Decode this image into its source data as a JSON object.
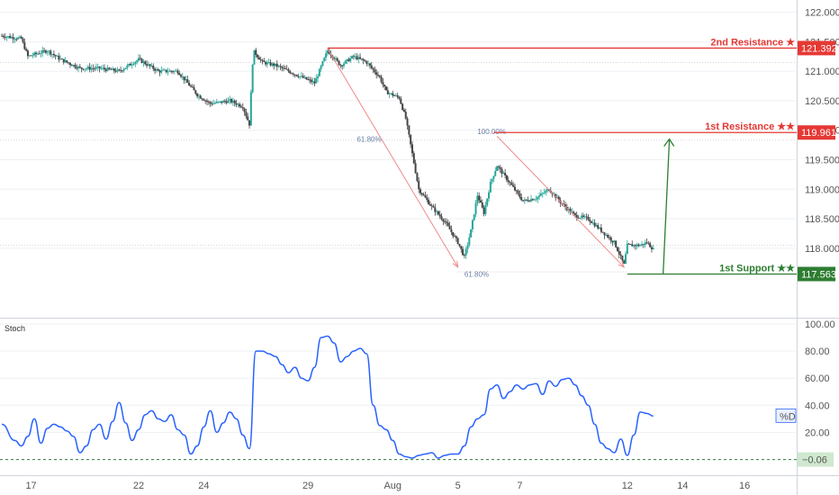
{
  "colors": {
    "up": "#26a69a",
    "down": "#444444",
    "resistance": "#e53935",
    "support": "#2e7d32",
    "stoch_line": "#2962ff",
    "fib_text": "#6b7fa8",
    "fib_arrow": "#ef8a8a",
    "grid": "#eef1f5"
  },
  "chart_data": [
    {
      "type": "candlestick",
      "title": "",
      "ylim": [
        117.25,
        122.1
      ],
      "yticks": [
        "122.000",
        "121.500",
        "121.000",
        "120.500",
        "120.000",
        "119.500",
        "119.000",
        "118.500",
        "118.000"
      ],
      "ytick_values": [
        122.0,
        121.5,
        121.0,
        120.5,
        120.0,
        119.5,
        119.0,
        118.5,
        118.0
      ],
      "xticks": [
        {
          "label": "17",
          "bar": 4.5
        },
        {
          "label": "22",
          "bar": 21
        },
        {
          "label": "24",
          "bar": 31
        },
        {
          "label": "29",
          "bar": 47
        },
        {
          "label": "Aug",
          "bar": 60
        },
        {
          "label": "5",
          "bar": 70
        },
        {
          "label": "7",
          "bar": 79.5
        },
        {
          "label": "12",
          "bar": 96
        },
        {
          "label": "14",
          "bar": 104.5
        },
        {
          "label": "16",
          "bar": 114
        }
      ],
      "bar_count": 122,
      "close_path": [
        [
          0,
          121.6
        ],
        [
          3,
          121.55
        ],
        [
          4,
          121.25
        ],
        [
          7,
          121.35
        ],
        [
          9,
          121.2
        ],
        [
          12,
          121.05
        ],
        [
          15,
          121.05
        ],
        [
          18,
          121.0
        ],
        [
          21,
          121.2
        ],
        [
          24,
          121.0
        ],
        [
          27,
          121.0
        ],
        [
          30,
          120.6
        ],
        [
          32,
          120.45
        ],
        [
          35,
          120.5
        ],
        [
          37,
          120.4
        ],
        [
          38,
          120.1
        ],
        [
          38.6,
          121.35
        ],
        [
          40,
          121.15
        ],
        [
          42,
          121.1
        ],
        [
          44,
          121.0
        ],
        [
          46,
          120.9
        ],
        [
          48,
          120.8
        ],
        [
          50,
          121.35
        ],
        [
          52,
          121.1
        ],
        [
          54,
          121.25
        ],
        [
          56,
          121.15
        ],
        [
          58,
          120.9
        ],
        [
          59,
          120.65
        ],
        [
          61,
          120.55
        ],
        [
          62,
          120.2
        ],
        [
          63,
          119.6
        ],
        [
          64,
          119.0
        ],
        [
          66,
          118.7
        ],
        [
          68,
          118.45
        ],
        [
          70,
          118.1
        ],
        [
          71,
          117.85
        ],
        [
          72,
          118.3
        ],
        [
          73,
          118.9
        ],
        [
          74,
          118.6
        ],
        [
          75,
          119.1
        ],
        [
          76,
          119.4
        ],
        [
          78,
          119.1
        ],
        [
          80,
          118.8
        ],
        [
          82,
          118.85
        ],
        [
          84,
          119.0
        ],
        [
          86,
          118.75
        ],
        [
          88,
          118.55
        ],
        [
          90,
          118.5
        ],
        [
          92,
          118.3
        ],
        [
          94,
          118.1
        ],
        [
          95.5,
          117.72
        ],
        [
          96,
          118.05
        ],
        [
          98,
          118.05
        ],
        [
          99,
          118.1
        ],
        [
          100,
          117.98
        ]
      ],
      "levels": [
        {
          "name": "2nd Resistance",
          "label": "2nd Resistance ★",
          "price": 121.392,
          "price_label": "121.392",
          "from_bar": 50,
          "role": "resistance"
        },
        {
          "name": "1st Resistance",
          "label": "1st Resistance ★★",
          "price": 119.961,
          "price_label": "119.961",
          "from_bar": 75.5,
          "role": "resistance"
        },
        {
          "name": "1st Support",
          "label": "1st Support ★★",
          "price": 117.563,
          "price_label": "117.563",
          "from_bar": 96,
          "role": "support"
        }
      ],
      "fib_labels": [
        {
          "text": "61.80%",
          "bar": 54.5,
          "price": 119.85
        },
        {
          "text": "100.00%",
          "bar": 73,
          "price": 119.98
        },
        {
          "text": "61.80%",
          "bar": 71,
          "price": 117.56
        }
      ],
      "fib_arrows": [
        {
          "from": [
            50,
            121.38
          ],
          "to": [
            70,
            117.68
          ]
        },
        {
          "from": [
            76,
            119.9
          ],
          "to": [
            95.5,
            117.68
          ]
        }
      ],
      "target_arrow": {
        "bar": 101.5,
        "from": 117.563,
        "to": 119.85
      }
    },
    {
      "type": "line",
      "title": "Stoch",
      "series": [
        {
          "name": "%D",
          "values_path": [
            [
              0,
              26
            ],
            [
              2,
              14
            ],
            [
              3,
              10
            ],
            [
              4,
              17
            ],
            [
              5,
              30
            ],
            [
              6,
              12
            ],
            [
              7,
              23
            ],
            [
              8,
              26
            ],
            [
              9,
              24
            ],
            [
              10,
              21
            ],
            [
              11,
              17
            ],
            [
              12,
              5
            ],
            [
              13,
              10
            ],
            [
              14,
              22
            ],
            [
              15,
              26
            ],
            [
              16,
              15
            ],
            [
              17,
              28
            ],
            [
              18,
              42
            ],
            [
              19,
              27
            ],
            [
              20,
              14
            ],
            [
              21,
              22
            ],
            [
              22,
              33
            ],
            [
              23,
              36
            ],
            [
              24,
              30
            ],
            [
              25,
              28
            ],
            [
              26,
              33
            ],
            [
              27,
              22
            ],
            [
              28,
              18
            ],
            [
              29,
              4
            ],
            [
              30,
              10
            ],
            [
              31,
              24
            ],
            [
              32,
              36
            ],
            [
              33,
              20
            ],
            [
              34,
              27
            ],
            [
              35,
              35
            ],
            [
              36,
              30
            ],
            [
              37,
              18
            ],
            [
              38,
              8
            ],
            [
              39,
              80
            ],
            [
              40,
              80
            ],
            [
              41,
              78
            ],
            [
              42,
              76
            ],
            [
              43,
              70
            ],
            [
              44,
              64
            ],
            [
              45,
              68
            ],
            [
              46,
              60
            ],
            [
              47,
              58
            ],
            [
              48,
              68
            ],
            [
              49,
              90
            ],
            [
              50,
              91
            ],
            [
              51,
              86
            ],
            [
              52,
              72
            ],
            [
              53,
              76
            ],
            [
              54,
              80
            ],
            [
              55,
              82
            ],
            [
              56,
              78
            ],
            [
              57,
              40
            ],
            [
              58,
              25
            ],
            [
              59,
              22
            ],
            [
              60,
              14
            ],
            [
              61,
              4
            ],
            [
              62,
              2
            ],
            [
              63,
              1
            ],
            [
              64,
              3
            ],
            [
              65,
              4
            ],
            [
              66,
              5
            ],
            [
              67,
              1
            ],
            [
              68,
              3
            ],
            [
              69,
              4
            ],
            [
              70,
              4
            ],
            [
              71,
              10
            ],
            [
              72,
              24
            ],
            [
              73,
              30
            ],
            [
              74,
              33
            ],
            [
              75,
              52
            ],
            [
              76,
              55
            ],
            [
              77,
              45
            ],
            [
              78,
              50
            ],
            [
              79,
              55
            ],
            [
              80,
              52
            ],
            [
              81,
              55
            ],
            [
              82,
              56
            ],
            [
              83,
              48
            ],
            [
              84,
              58
            ],
            [
              85,
              54
            ],
            [
              86,
              59
            ],
            [
              87,
              60
            ],
            [
              88,
              55
            ],
            [
              89,
              47
            ],
            [
              90,
              40
            ],
            [
              91,
              26
            ],
            [
              92,
              12
            ],
            [
              93,
              8
            ],
            [
              94,
              5
            ],
            [
              95,
              15
            ],
            [
              96,
              3
            ],
            [
              97,
              18
            ],
            [
              98,
              35
            ],
            [
              99,
              34
            ],
            [
              100,
              32
            ]
          ]
        }
      ],
      "ylim": [
        -3,
        102
      ],
      "yticks": [
        "100.00",
        "80.00",
        "60.00",
        "40.00",
        "20.00"
      ],
      "ytick_values": [
        100,
        80,
        60,
        40,
        20
      ],
      "current_label": "%D",
      "current_value": "32.47",
      "oversold_label": "−0.06",
      "oversold_value": -0.06
    }
  ]
}
